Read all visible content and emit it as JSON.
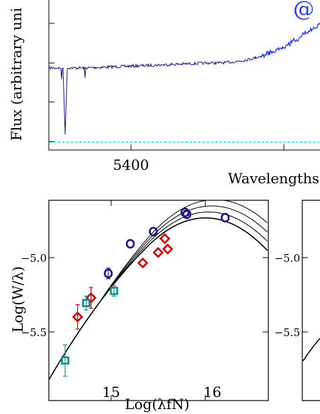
{
  "chart_data": [
    {
      "type": "line",
      "xlabel": "Wavelengths",
      "ylabel": "Flux (arbitrary uni",
      "x_ticks": [
        "5400"
      ],
      "corner_glyph": "@",
      "series": [
        {
          "color": "#1a1a8c",
          "style": "spectrum"
        },
        {
          "color": "#1f3cff",
          "style": "spectrum"
        },
        {
          "color": "#00e5e5",
          "style": "dotted"
        }
      ]
    },
    {
      "type": "scatter",
      "xlabel": "Log(λfN)",
      "ylabel": "Log(W/λ)",
      "x_ticks": [
        "15",
        "16"
      ],
      "y_ticks": [
        "−5.0",
        "−5.5"
      ],
      "xlim": [
        14.43,
        16.72
      ],
      "ylim": [
        -5.86,
        -4.71
      ],
      "series": [
        {
          "marker": "circle",
          "color": "#1a1a8c",
          "points": [
            [
              15.05,
              -5.13
            ],
            [
              15.28,
              -4.96
            ],
            [
              15.52,
              -4.89
            ],
            [
              15.85,
              -4.78
            ],
            [
              15.87,
              -4.79
            ],
            [
              16.27,
              -4.81
            ]
          ]
        },
        {
          "marker": "diamond",
          "color": "#e00000",
          "points": [
            [
              14.73,
              -5.38
            ],
            [
              14.87,
              -5.27
            ],
            [
              15.41,
              -5.07
            ],
            [
              15.57,
              -5.01
            ],
            [
              15.64,
              -4.93
            ],
            [
              15.67,
              -4.99
            ]
          ]
        },
        {
          "marker": "square",
          "color": "#119090",
          "points": [
            [
              14.6,
              -5.63
            ],
            [
              14.82,
              -5.3
            ],
            [
              15.11,
              -5.23
            ]
          ]
        }
      ],
      "curves_color": "#000000"
    },
    {
      "type": "scatter",
      "y_ticks": [
        "−5.0",
        "−5.5"
      ]
    }
  ]
}
